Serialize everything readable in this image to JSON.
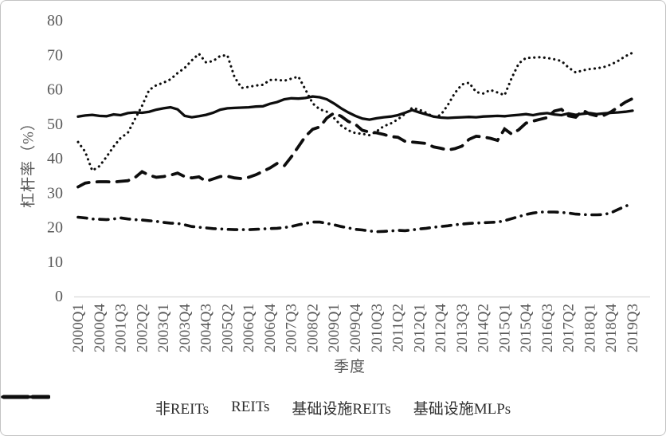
{
  "chart_data": {
    "type": "line",
    "title": "",
    "xlabel": "季度",
    "ylabel": "杠杆率（%）",
    "ylim": [
      0,
      80
    ],
    "yticks": [
      0,
      10,
      20,
      30,
      40,
      50,
      60,
      70,
      80
    ],
    "x_start": "2000Q1",
    "x_end": "2019Q3",
    "x_frequency": "quarterly",
    "n_points": 79,
    "xtick_every_n_points": 3,
    "xtick_labels": [
      "2000Q1",
      "2000Q4",
      "2001Q3",
      "2002Q2",
      "2003Q1",
      "2003Q4",
      "2004Q3",
      "2005Q2",
      "2006Q1",
      "2006Q4",
      "2007Q3",
      "2008Q2",
      "2009Q1",
      "2009Q4",
      "2010Q3",
      "2011Q2",
      "2012Q1",
      "2012Q4",
      "2013Q3",
      "2014Q2",
      "2015Q1",
      "2015Q4",
      "2016Q3",
      "2017Q2",
      "2018Q1",
      "2018Q4",
      "2019Q3"
    ],
    "grid": "off",
    "legend_position": "bottom-center",
    "line_color": "#0d0d0d",
    "series": [
      {
        "name": "非REITs",
        "style": "dash-dot",
        "values": [
          23.0,
          22.8,
          22.5,
          22.4,
          22.3,
          22.5,
          22.8,
          22.5,
          22.3,
          22.2,
          22.0,
          21.8,
          21.5,
          21.3,
          21.2,
          20.8,
          20.3,
          20.1,
          19.9,
          19.7,
          19.6,
          19.5,
          19.4,
          19.4,
          19.4,
          19.5,
          19.6,
          19.7,
          19.8,
          20.0,
          20.3,
          20.8,
          21.2,
          21.6,
          21.6,
          21.2,
          20.8,
          20.3,
          19.9,
          19.5,
          19.3,
          19.0,
          18.8,
          18.9,
          19.0,
          19.2,
          19.1,
          19.3,
          19.6,
          19.8,
          20.1,
          20.3,
          20.5,
          20.8,
          21.0,
          21.2,
          21.3,
          21.4,
          21.5,
          21.6,
          22.0,
          22.6,
          23.2,
          23.8,
          24.2,
          24.5,
          24.5,
          24.5,
          24.4,
          24.2,
          23.9,
          23.8,
          23.7,
          23.7,
          23.8,
          24.3,
          25.3,
          26.2,
          27.0
        ]
      },
      {
        "name": "REITs",
        "style": "solid",
        "values": [
          52.2,
          52.5,
          52.7,
          52.4,
          52.3,
          52.8,
          52.6,
          53.2,
          53.4,
          53.3,
          53.6,
          54.2,
          54.6,
          54.9,
          54.3,
          52.4,
          52.0,
          52.3,
          52.7,
          53.3,
          54.2,
          54.6,
          54.7,
          54.8,
          54.9,
          55.1,
          55.2,
          55.9,
          56.4,
          57.2,
          57.5,
          57.4,
          57.6,
          58.0,
          57.8,
          57.2,
          56.0,
          54.6,
          53.4,
          52.4,
          51.6,
          51.3,
          51.7,
          52.0,
          52.2,
          52.6,
          53.3,
          54.1,
          53.4,
          52.8,
          52.2,
          51.9,
          51.8,
          51.9,
          52.0,
          52.1,
          52.0,
          52.2,
          52.3,
          52.4,
          52.3,
          52.5,
          52.7,
          52.9,
          52.6,
          53.0,
          53.2,
          52.8,
          52.6,
          53.1,
          52.7,
          53.0,
          53.2,
          52.9,
          53.1,
          53.3,
          53.4,
          53.6,
          53.9
        ]
      },
      {
        "name": "基础设施REITs",
        "style": "dotted",
        "values": [
          44.8,
          42.0,
          36.5,
          37.8,
          40.5,
          43.5,
          46.0,
          47.5,
          51.5,
          55.3,
          59.9,
          61.3,
          62.0,
          63.0,
          64.8,
          66.3,
          68.5,
          70.4,
          67.9,
          68.3,
          69.8,
          70.0,
          63.7,
          60.5,
          60.8,
          61.2,
          61.4,
          62.8,
          62.9,
          62.6,
          63.2,
          63.8,
          60.0,
          56.0,
          54.3,
          53.6,
          51.8,
          49.6,
          48.2,
          47.4,
          47.2,
          46.8,
          47.9,
          49.4,
          50.2,
          51.4,
          53.0,
          54.7,
          54.2,
          53.3,
          52.1,
          52.6,
          55.5,
          59.0,
          61.5,
          62.0,
          59.3,
          58.9,
          59.9,
          59.2,
          58.4,
          63.4,
          67.6,
          69.2,
          69.3,
          69.4,
          69.2,
          68.8,
          68.3,
          66.4,
          65.0,
          65.6,
          66.0,
          66.2,
          66.6,
          67.3,
          68.4,
          69.7,
          70.7
        ]
      },
      {
        "name": "基础设施MLPs",
        "style": "long-dash",
        "values": [
          31.8,
          32.9,
          33.2,
          33.3,
          33.3,
          33.2,
          33.4,
          33.6,
          34.5,
          36.2,
          35.2,
          34.6,
          34.8,
          35.2,
          35.8,
          34.8,
          34.4,
          34.7,
          33.4,
          34.1,
          34.8,
          34.9,
          34.4,
          34.2,
          34.6,
          35.3,
          36.3,
          37.3,
          38.6,
          37.9,
          40.5,
          43.5,
          46.5,
          48.5,
          49.2,
          51.8,
          53.2,
          52.3,
          50.8,
          50.0,
          48.2,
          47.7,
          47.5,
          47.0,
          46.4,
          46.2,
          45.0,
          44.8,
          44.6,
          44.4,
          43.4,
          43.0,
          42.5,
          42.9,
          43.6,
          45.6,
          46.5,
          46.3,
          45.9,
          45.3,
          48.6,
          47.1,
          48.4,
          50.3,
          50.9,
          51.4,
          51.9,
          53.8,
          54.3,
          52.4,
          52.0,
          54.0,
          52.9,
          52.4,
          52.6,
          53.6,
          55.0,
          56.4,
          57.4
        ]
      }
    ]
  }
}
